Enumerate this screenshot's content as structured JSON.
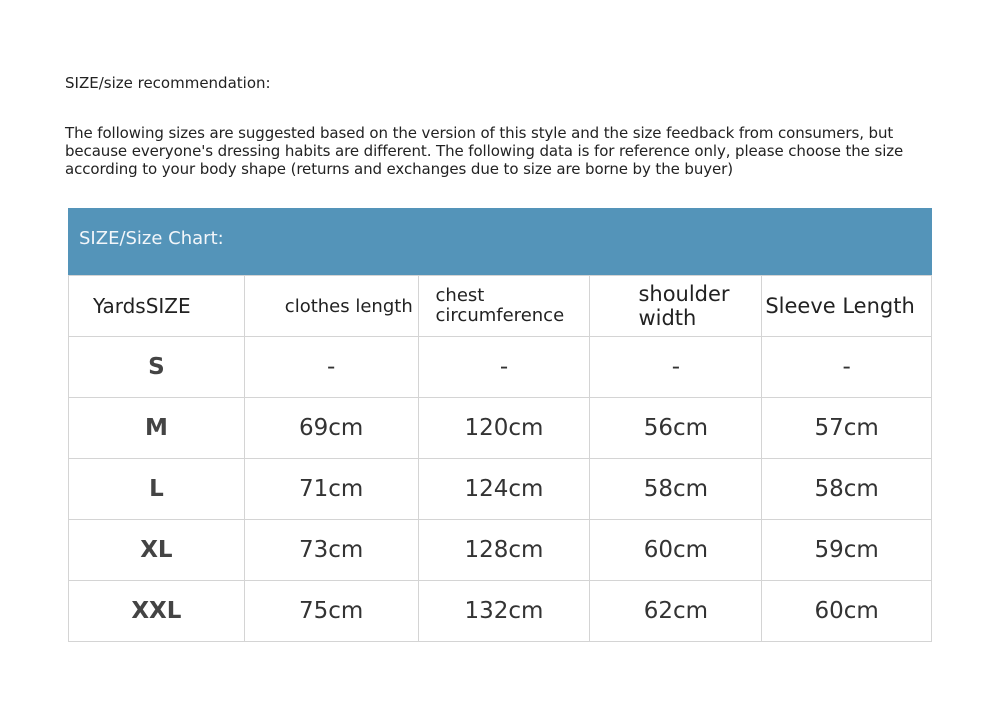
{
  "title": "SIZE/size recommendation:",
  "note": "The following sizes are suggested based on the version of this style and the size feedback from consumers, but because everyone's dressing habits are different. The following data is for reference only, please choose the size according to your body shape (returns and exchanges due to size are borne by the buyer)",
  "chart_title": "SIZE/Size Chart:",
  "header_color": "#5494b9",
  "columns": [
    "YardsSIZE",
    "clothes length",
    "chest circumference",
    "shoulder width",
    "Sleeve Length"
  ],
  "rows": [
    [
      "S",
      "-",
      "-",
      "-",
      "-"
    ],
    [
      "M",
      "69cm",
      "120cm",
      "56cm",
      "57cm"
    ],
    [
      "L",
      "71cm",
      "124cm",
      "58cm",
      "58cm"
    ],
    [
      "XL",
      "73cm",
      "128cm",
      "60cm",
      "59cm"
    ],
    [
      "XXL",
      "75cm",
      "132cm",
      "62cm",
      "60cm"
    ]
  ]
}
